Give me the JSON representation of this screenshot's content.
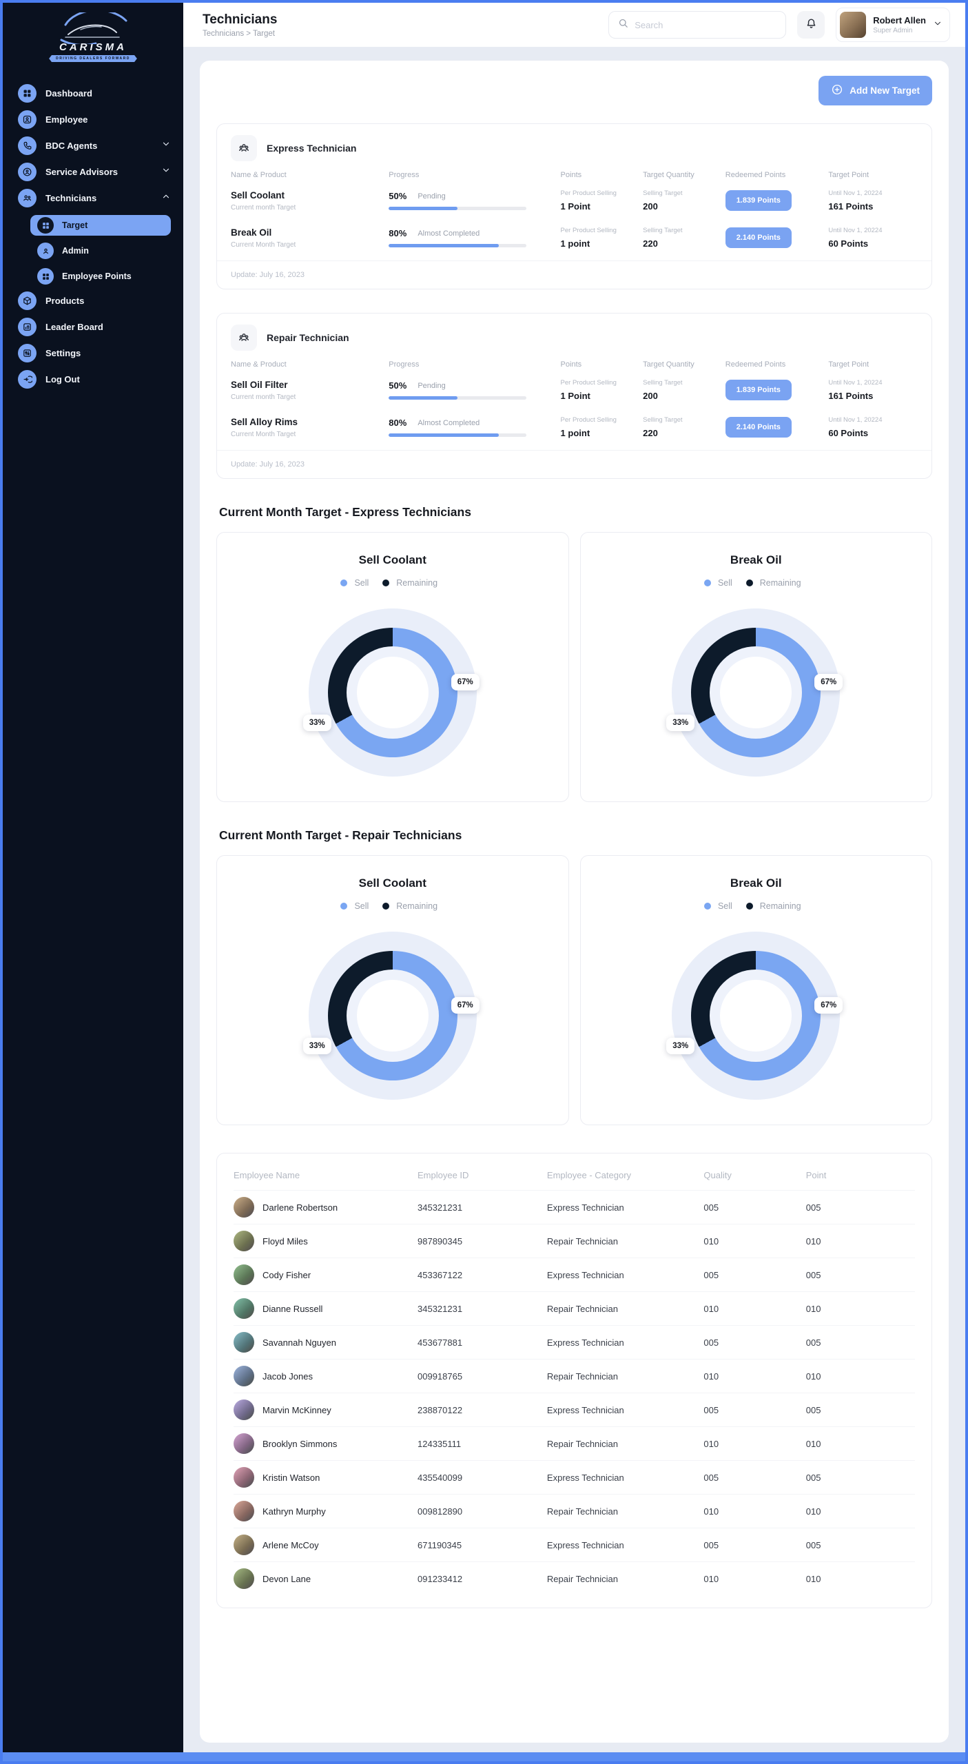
{
  "colors": {
    "accent": "#7aa3f2",
    "sidebar_bg": "#0a111f",
    "dark_navy": "#0d1626",
    "donut_sell": "#7aa6f2",
    "donut_remaining": "#0d1b2b",
    "donut_halo": "#e9eef9",
    "content_bg": "#e7ebf3",
    "frame_blue": "#4a7df0"
  },
  "sidebar": {
    "brand": "CARISMA",
    "tagline": "DRIVING DEALERS FORWARD",
    "items": [
      {
        "label": "Dashboard"
      },
      {
        "label": "Employee"
      },
      {
        "label": "BDC Agents"
      },
      {
        "label": "Service Advisors"
      },
      {
        "label": "Technicians"
      }
    ],
    "sub_items": [
      {
        "label": "Target",
        "active": true
      },
      {
        "label": "Admin"
      },
      {
        "label": "Employee Points"
      }
    ],
    "items_bottom": [
      {
        "label": "Products"
      },
      {
        "label": "Leader Board"
      },
      {
        "label": "Settings"
      },
      {
        "label": "Log Out"
      }
    ]
  },
  "header": {
    "title": "Technicians",
    "breadcrumb": "Technicians > Target",
    "search_placeholder": "Search",
    "user": {
      "name": "Robert Allen",
      "role": "Super Admin"
    }
  },
  "toolbar": {
    "add_button": "Add New Target"
  },
  "target_cards": [
    {
      "title": "Express Technician",
      "columns": {
        "name": "Name & Product",
        "progress": "Progress",
        "points": "Points",
        "qty": "Target Quantity",
        "redeemed": "Redeemed Points",
        "target": "Target Point"
      },
      "rows": [
        {
          "name": "Sell Coolant",
          "subtitle": "Current month Target",
          "progress_label": "50%",
          "progress_value": 50,
          "status": "Pending",
          "points_caption": "Per Product Selling",
          "points_value": "1 Point",
          "qty_caption": "Selling Target",
          "qty_value": "200",
          "redeemed": "1.839 Points",
          "until": "Until Nov 1, 20224",
          "target_value": "161 Points"
        },
        {
          "name": "Break Oil",
          "subtitle": "Current Month Target",
          "progress_label": "80%",
          "progress_value": 80,
          "status": "Almost Completed",
          "points_caption": "Per Product Selling",
          "points_value": "1 point",
          "qty_caption": "Selling Target",
          "qty_value": "220",
          "redeemed": "2.140 Points",
          "until": "Until Nov 1, 20224",
          "target_value": "60 Points"
        }
      ],
      "update": "Update: July 16, 2023"
    },
    {
      "title": "Repair Technician",
      "columns": {
        "name": "Name & Product",
        "progress": "Progress",
        "points": "Points",
        "qty": "Target Quantity",
        "redeemed": "Redeemed Points",
        "target": "Target Point"
      },
      "rows": [
        {
          "name": "Sell Oil Filter",
          "subtitle": "Current month Target",
          "progress_label": "50%",
          "progress_value": 50,
          "status": "Pending",
          "points_caption": "Per Product Selling",
          "points_value": "1 Point",
          "qty_caption": "Selling Target",
          "qty_value": "200",
          "redeemed": "1.839 Points",
          "until": "Until Nov 1, 20224",
          "target_value": "161 Points"
        },
        {
          "name": "Sell Alloy Rims",
          "subtitle": "Current Month Target",
          "progress_label": "80%",
          "progress_value": 80,
          "status": "Almost Completed",
          "points_caption": "Per Product Selling",
          "points_value": "1 point",
          "qty_caption": "Selling Target",
          "qty_value": "220",
          "redeemed": "2.140 Points",
          "until": "Until Nov 1, 20224",
          "target_value": "60 Points"
        }
      ],
      "update": "Update: July 16, 2023"
    }
  ],
  "sections": [
    {
      "title": "Current Month Target - Express Technicians",
      "charts": [
        {
          "title": "Sell Coolant",
          "legend_sell": "Sell",
          "legend_remaining": "Remaining",
          "sell": 67,
          "remaining": 33,
          "sell_label": "67%",
          "remaining_label": "33%"
        },
        {
          "title": "Break Oil",
          "legend_sell": "Sell",
          "legend_remaining": "Remaining",
          "sell": 67,
          "remaining": 33,
          "sell_label": "67%",
          "remaining_label": "33%"
        }
      ]
    },
    {
      "title": "Current Month Target - Repair Technicians",
      "charts": [
        {
          "title": "Sell Coolant",
          "legend_sell": "Sell",
          "legend_remaining": "Remaining",
          "sell": 67,
          "remaining": 33,
          "sell_label": "67%",
          "remaining_label": "33%"
        },
        {
          "title": "Break Oil",
          "legend_sell": "Sell",
          "legend_remaining": "Remaining",
          "sell": 67,
          "remaining": 33,
          "sell_label": "67%",
          "remaining_label": "33%"
        }
      ]
    }
  ],
  "chart_data": [
    {
      "type": "pie",
      "title": "Sell Coolant",
      "group": "Express Technicians",
      "labels": [
        "Sell",
        "Remaining"
      ],
      "values": [
        67,
        33
      ],
      "legend_position": "top"
    },
    {
      "type": "pie",
      "title": "Break Oil",
      "group": "Express Technicians",
      "labels": [
        "Sell",
        "Remaining"
      ],
      "values": [
        67,
        33
      ],
      "legend_position": "top"
    },
    {
      "type": "pie",
      "title": "Sell Coolant",
      "group": "Repair Technicians",
      "labels": [
        "Sell",
        "Remaining"
      ],
      "values": [
        67,
        33
      ],
      "legend_position": "top"
    },
    {
      "type": "pie",
      "title": "Break Oil",
      "group": "Repair Technicians",
      "labels": [
        "Sell",
        "Remaining"
      ],
      "values": [
        67,
        33
      ],
      "legend_position": "top"
    }
  ],
  "employee_table": {
    "columns": [
      "Employee Name",
      "Employee ID",
      "Employee - Category",
      "Quality",
      "Point"
    ],
    "rows": [
      {
        "name": "Darlene Robertson",
        "id": "345321231",
        "category": "Express Technician",
        "quality": "005",
        "point": "005"
      },
      {
        "name": "Floyd Miles",
        "id": "987890345",
        "category": "Repair Technician",
        "quality": "010",
        "point": "010"
      },
      {
        "name": "Cody Fisher",
        "id": "453367122",
        "category": "Express Technician",
        "quality": "005",
        "point": "005"
      },
      {
        "name": "Dianne Russell",
        "id": "345321231",
        "category": "Repair Technician",
        "quality": "010",
        "point": "010"
      },
      {
        "name": "Savannah Nguyen",
        "id": "453677881",
        "category": "Express Technician",
        "quality": "005",
        "point": "005"
      },
      {
        "name": "Jacob Jones",
        "id": "009918765",
        "category": "Repair Technician",
        "quality": "010",
        "point": "010"
      },
      {
        "name": "Marvin McKinney",
        "id": "238870122",
        "category": "Express Technician",
        "quality": "005",
        "point": "005"
      },
      {
        "name": "Brooklyn Simmons",
        "id": "124335111",
        "category": "Repair Technician",
        "quality": "010",
        "point": "010"
      },
      {
        "name": "Kristin Watson",
        "id": "435540099",
        "category": "Express Technician",
        "quality": "005",
        "point": "005"
      },
      {
        "name": "Kathryn Murphy",
        "id": "009812890",
        "category": "Repair Technician",
        "quality": "010",
        "point": "010"
      },
      {
        "name": "Arlene McCoy",
        "id": "671190345",
        "category": "Express Technician",
        "quality": "005",
        "point": "005"
      },
      {
        "name": "Devon Lane",
        "id": "091233412",
        "category": "Repair Technician",
        "quality": "010",
        "point": "010"
      }
    ]
  }
}
